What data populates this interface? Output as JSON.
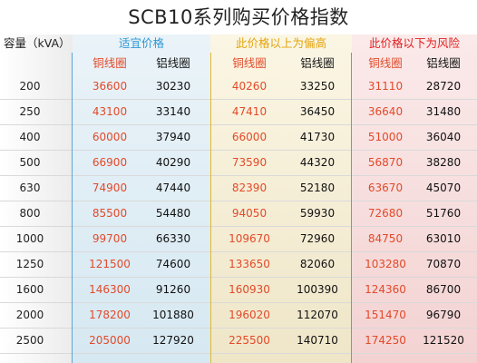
{
  "title": "SCB10系列购买价格指数",
  "header": {
    "capacity": "容量（kVA）",
    "suitable": "适宜价格",
    "high": "此价格以上为偏高",
    "risk": "此价格以下为风险"
  },
  "sub": {
    "copper": "铜线圈",
    "aluminum": "铝线圈"
  },
  "colors": {
    "suitable_header": "#2f98d6",
    "high_header": "#e3a40d",
    "risk_header": "#e02020",
    "copper_value": "#e24a2a",
    "aluminum_value": "#111111"
  },
  "rows": [
    {
      "capacity": "200",
      "suit_cu": "36600",
      "suit_al": "30230",
      "high_cu": "40260",
      "high_al": "33250",
      "risk_cu": "31110",
      "risk_al": "28720"
    },
    {
      "capacity": "250",
      "suit_cu": "43100",
      "suit_al": "33140",
      "high_cu": "47410",
      "high_al": "36450",
      "risk_cu": "36640",
      "risk_al": "31480"
    },
    {
      "capacity": "400",
      "suit_cu": "60000",
      "suit_al": "37940",
      "high_cu": "66000",
      "high_al": "41730",
      "risk_cu": "51000",
      "risk_al": "36040"
    },
    {
      "capacity": "500",
      "suit_cu": "66900",
      "suit_al": "40290",
      "high_cu": "73590",
      "high_al": "44320",
      "risk_cu": "56870",
      "risk_al": "38280"
    },
    {
      "capacity": "630",
      "suit_cu": "74900",
      "suit_al": "47440",
      "high_cu": "82390",
      "high_al": "52180",
      "risk_cu": "63670",
      "risk_al": "45070"
    },
    {
      "capacity": "800",
      "suit_cu": "85500",
      "suit_al": "54480",
      "high_cu": "94050",
      "high_al": "59930",
      "risk_cu": "72680",
      "risk_al": "51760"
    },
    {
      "capacity": "1000",
      "suit_cu": "99700",
      "suit_al": "66330",
      "high_cu": "109670",
      "high_al": "72960",
      "risk_cu": "84750",
      "risk_al": "63010"
    },
    {
      "capacity": "1250",
      "suit_cu": "121500",
      "suit_al": "74600",
      "high_cu": "133650",
      "high_al": "82060",
      "risk_cu": "103280",
      "risk_al": "70870"
    },
    {
      "capacity": "1600",
      "suit_cu": "146300",
      "suit_al": "91260",
      "high_cu": "160930",
      "high_al": "100390",
      "risk_cu": "124360",
      "risk_al": "86700"
    },
    {
      "capacity": "2000",
      "suit_cu": "178200",
      "suit_al": "101880",
      "high_cu": "196020",
      "high_al": "112070",
      "risk_cu": "151470",
      "risk_al": "96790"
    },
    {
      "capacity": "2500",
      "suit_cu": "205000",
      "suit_al": "127920",
      "high_cu": "225500",
      "high_al": "140710",
      "risk_cu": "174250",
      "risk_al": "121520"
    }
  ]
}
